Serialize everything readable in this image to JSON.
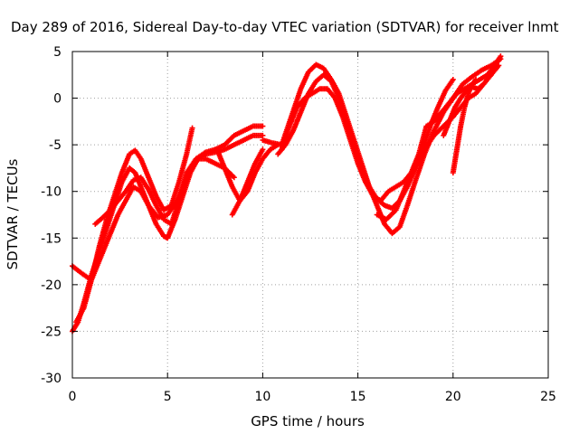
{
  "chart_data": {
    "type": "scatter",
    "title": "Day 289 of 2016, Sidereal Day-to-day VTEC variation (SDTVAR) for receiver lnmt",
    "xlabel": "GPS time / hours",
    "ylabel": "SDTVAR / TECUs",
    "xlim": [
      0,
      25
    ],
    "ylim": [
      -30,
      5
    ],
    "xticks": [
      0,
      5,
      10,
      15,
      20,
      25
    ],
    "yticks": [
      -30,
      -25,
      -20,
      -15,
      -10,
      -5,
      0,
      5
    ],
    "grid": true,
    "legend": "none",
    "marker": "plus",
    "color": "#ff0000",
    "series": [
      {
        "x": [
          0.0,
          0.3,
          0.6,
          1.0,
          1.4,
          1.8,
          2.2,
          2.6,
          3.0,
          3.3,
          3.6,
          4.0,
          4.4,
          4.8,
          5.0,
          5.4,
          5.8,
          6.2,
          6.6,
          7.0,
          7.5,
          8.0,
          8.5
        ],
        "y": [
          -25.0,
          -24.0,
          -22.0,
          -19.0,
          -16.5,
          -14.0,
          -11.5,
          -9.0,
          -7.5,
          -8.0,
          -9.5,
          -11.5,
          -13.5,
          -14.8,
          -15.0,
          -13.0,
          -10.5,
          -8.0,
          -6.5,
          -6.5,
          -7.0,
          -7.5,
          -8.5
        ]
      },
      {
        "x": [
          0.2,
          0.6,
          1.0,
          1.4,
          1.8,
          2.2,
          2.6,
          3.0,
          3.3,
          3.6,
          4.0,
          4.4,
          4.8,
          5.2,
          5.6,
          6.0,
          6.3
        ],
        "y": [
          -24.0,
          -22.5,
          -19.5,
          -16.0,
          -13.0,
          -10.5,
          -8.0,
          -6.0,
          -5.6,
          -6.5,
          -8.5,
          -10.5,
          -12.0,
          -11.5,
          -9.0,
          -6.0,
          -3.2
        ]
      },
      {
        "x": [
          0.0,
          0.5,
          1.0,
          1.5,
          2.0,
          2.4,
          2.8,
          3.2,
          3.6,
          4.0,
          4.5,
          5.0,
          5.5,
          6.0,
          6.5,
          7.0,
          7.5,
          8.0,
          8.5,
          9.0,
          9.5,
          10.0
        ],
        "y": [
          -18.0,
          -18.8,
          -19.5,
          -17.0,
          -14.5,
          -12.5,
          -11.0,
          -9.5,
          -10.0,
          -11.5,
          -12.8,
          -12.5,
          -11.0,
          -8.5,
          -6.5,
          -5.8,
          -5.5,
          -5.0,
          -4.0,
          -3.5,
          -3.0,
          -3.0
        ]
      },
      {
        "x": [
          1.2,
          1.6,
          2.0,
          2.4,
          2.8,
          3.2,
          3.6,
          4.0,
          4.4,
          4.8,
          5.2,
          5.6,
          6.0,
          6.5,
          7.0,
          7.5,
          8.0,
          8.5,
          9.0,
          9.5,
          10.0
        ],
        "y": [
          -13.5,
          -12.8,
          -12.0,
          -11.0,
          -10.0,
          -8.8,
          -8.5,
          -9.8,
          -11.5,
          -13.0,
          -13.5,
          -11.0,
          -8.0,
          -6.5,
          -6.0,
          -5.8,
          -5.5,
          -5.0,
          -4.5,
          -4.0,
          -4.0
        ]
      },
      {
        "x": [
          7.6,
          8.0,
          8.4,
          8.8,
          9.2,
          9.6,
          10.0,
          10.4,
          10.8
        ],
        "y": [
          -5.5,
          -7.5,
          -9.5,
          -11.0,
          -10.0,
          -8.0,
          -6.5,
          -5.5,
          -5.0
        ]
      },
      {
        "x": [
          8.4,
          8.8,
          9.2,
          9.6,
          10.0
        ],
        "y": [
          -12.5,
          -11.0,
          -9.0,
          -7.0,
          -5.5
        ]
      },
      {
        "x": [
          10.0,
          10.5,
          11.0,
          11.5,
          12.0,
          12.4,
          12.8,
          13.2,
          13.6,
          14.0,
          14.4,
          14.8,
          15.2,
          15.6,
          16.0,
          16.4,
          16.8,
          17.2,
          17.6,
          18.0,
          18.5,
          19.0,
          19.5,
          20.0,
          20.5,
          21.0,
          21.5,
          22.0,
          22.5
        ],
        "y": [
          -4.5,
          -4.8,
          -5.0,
          -2.0,
          1.0,
          2.8,
          3.6,
          3.2,
          2.0,
          0.5,
          -2.0,
          -4.5,
          -7.0,
          -9.5,
          -11.5,
          -13.5,
          -14.5,
          -13.8,
          -11.5,
          -9.0,
          -6.0,
          -3.5,
          -1.5,
          0.0,
          1.5,
          2.3,
          3.0,
          3.5,
          4.2
        ]
      },
      {
        "x": [
          10.8,
          11.2,
          11.6,
          12.0,
          12.4,
          12.8,
          13.2,
          13.6,
          14.0,
          14.4,
          14.8,
          15.2,
          15.6,
          16.0,
          16.4,
          16.8,
          17.2,
          17.6,
          18.0,
          18.4,
          18.8,
          19.2,
          19.6,
          20.0
        ],
        "y": [
          -6.0,
          -5.0,
          -3.5,
          -1.5,
          0.5,
          1.8,
          2.5,
          1.8,
          0.0,
          -2.5,
          -5.0,
          -7.5,
          -9.5,
          -10.8,
          -11.5,
          -11.8,
          -11.0,
          -9.5,
          -7.5,
          -5.5,
          -3.0,
          -1.0,
          0.8,
          2.0
        ]
      },
      {
        "x": [
          11.0,
          11.4,
          11.8,
          12.2,
          12.6,
          13.0,
          13.4,
          13.8,
          14.2,
          14.6,
          15.0,
          15.4,
          15.8,
          16.2,
          16.6,
          17.0,
          17.4,
          17.8,
          18.2,
          18.6,
          19.0,
          19.4,
          19.8,
          20.2,
          20.6,
          21.0,
          21.4,
          21.8,
          22.2,
          22.5
        ],
        "y": [
          -5.5,
          -3.0,
          -1.0,
          0.0,
          0.5,
          1.0,
          1.0,
          0.0,
          -2.0,
          -4.5,
          -7.0,
          -9.0,
          -10.5,
          -11.0,
          -10.0,
          -9.5,
          -9.0,
          -8.0,
          -6.0,
          -3.0,
          -2.5,
          -1.5,
          -0.5,
          0.5,
          1.0,
          1.5,
          2.0,
          2.5,
          3.5,
          4.5
        ]
      },
      {
        "x": [
          16.0,
          16.5,
          17.0,
          17.5,
          18.0,
          18.5,
          19.0,
          19.5,
          20.0,
          20.4,
          20.8,
          21.2,
          21.6,
          22.0,
          22.4
        ],
        "y": [
          -12.5,
          -13.0,
          -12.0,
          -9.5,
          -7.5,
          -5.5,
          -4.0,
          -3.0,
          -2.0,
          -1.0,
          0.0,
          0.5,
          1.5,
          2.5,
          3.5
        ]
      },
      {
        "x": [
          19.5,
          19.8,
          20.1,
          20.4,
          20.7,
          21.0,
          21.3,
          21.6,
          22.0
        ],
        "y": [
          -4.0,
          -2.5,
          -1.0,
          0.0,
          0.8,
          1.2,
          1.0,
          1.5,
          2.5
        ]
      },
      {
        "x": [
          20.0,
          20.2,
          20.4,
          20.6,
          20.8,
          21.0,
          21.2
        ],
        "y": [
          -8.0,
          -5.5,
          -3.0,
          -1.0,
          0.5,
          1.5,
          2.0
        ]
      }
    ]
  }
}
